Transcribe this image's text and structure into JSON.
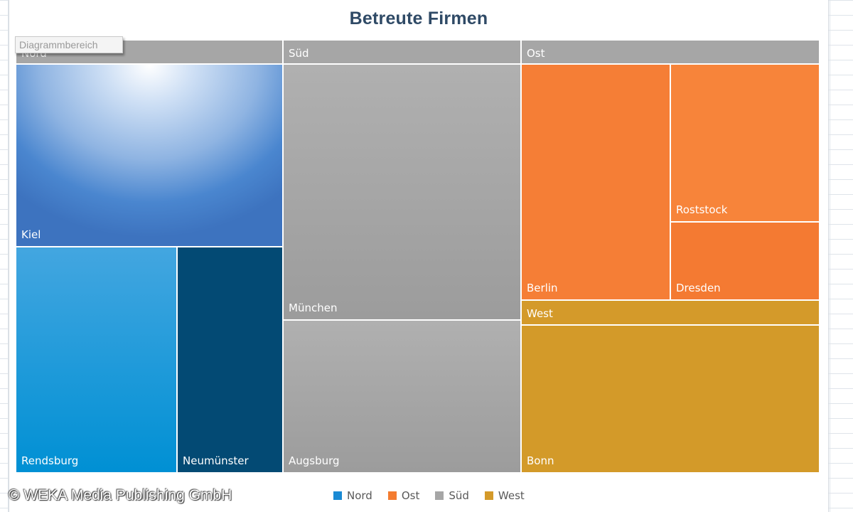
{
  "window": {
    "chart_area_tag": "Diagrammbereich",
    "watermark": "© WEKA Media Publishing GmbH"
  },
  "chart_data": {
    "type": "treemap",
    "title": "Betreute Firmen",
    "legend_position": "bottom",
    "groups": [
      {
        "name": "Nord",
        "color": "#2e75c9",
        "children": [
          {
            "name": "Kiel",
            "value": 25,
            "color": "#4a86cf",
            "gradient": "radial"
          },
          {
            "name": "Rendsburg",
            "value": 15,
            "color": "#0096d6"
          },
          {
            "name": "Neumünster",
            "value": 10,
            "color": "#034a74"
          }
        ]
      },
      {
        "name": "Süd",
        "color": "#a6a6a6",
        "children": [
          {
            "name": "München",
            "value": 24,
            "color": "#acacac"
          },
          {
            "name": "Augsburg",
            "value": 14,
            "color": "#a0a0a0"
          }
        ]
      },
      {
        "name": "Ost",
        "color": "#f47c30",
        "children": [
          {
            "name": "Berlin",
            "value": 15,
            "color": "#f57e36"
          },
          {
            "name": "Roststock",
            "value": 10,
            "color": "#f7843a"
          },
          {
            "name": "Dresden",
            "value": 5,
            "color": "#f47a32"
          }
        ]
      },
      {
        "name": "West",
        "color": "#d49a2a",
        "children": [
          {
            "name": "Bonn",
            "value": 16,
            "color": "#d39a29"
          }
        ]
      }
    ],
    "legend": [
      "Nord",
      "Ost",
      "Süd",
      "West"
    ]
  }
}
